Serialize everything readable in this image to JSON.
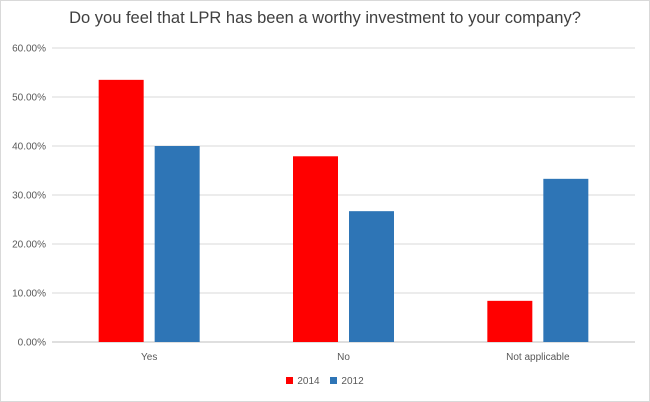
{
  "chart_data": {
    "type": "bar",
    "title": "Do you feel that LPR has been  a worthy investment to your company?",
    "categories": [
      "Yes",
      "No",
      "Not applicable"
    ],
    "series": [
      {
        "name": "2014",
        "color": "#ff0000",
        "values": [
          53.5,
          37.9,
          8.4
        ]
      },
      {
        "name": "2012",
        "color": "#2e75b6",
        "values": [
          40.0,
          26.7,
          33.3
        ]
      }
    ],
    "ylim": [
      0,
      60
    ],
    "yticks": [
      "0.00%",
      "10.00%",
      "20.00%",
      "30.00%",
      "40.00%",
      "50.00%",
      "60.00%"
    ],
    "ytick_values": [
      0,
      10,
      20,
      30,
      40,
      50,
      60
    ],
    "grid": true,
    "legend_position": "bottom"
  }
}
